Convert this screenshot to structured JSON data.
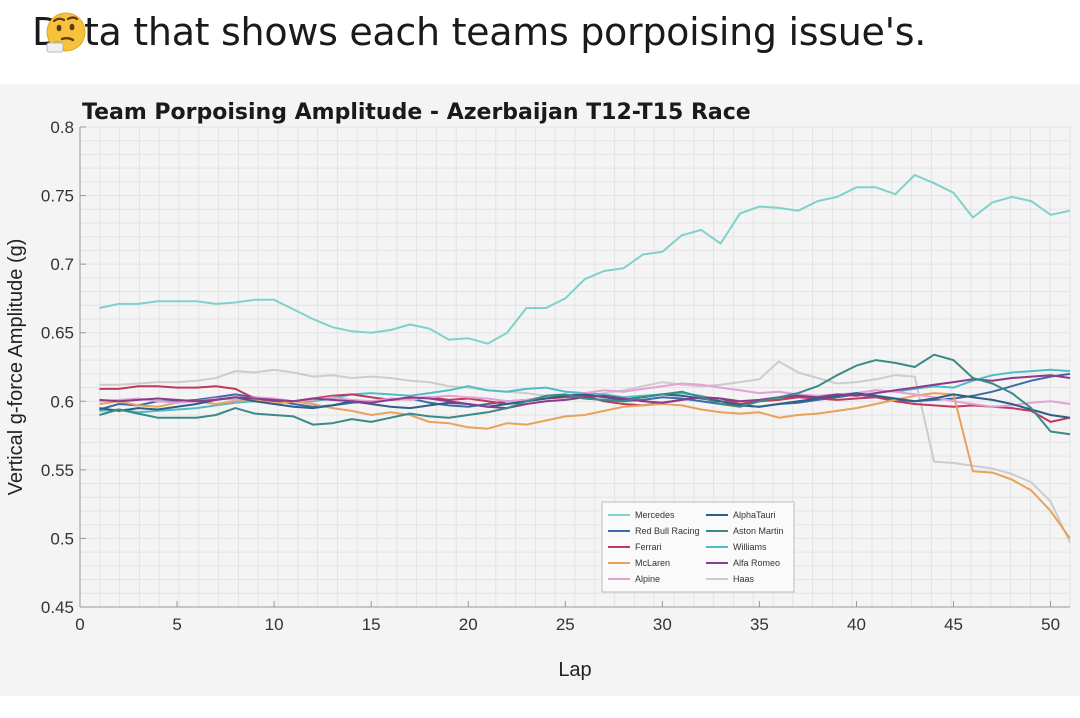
{
  "post": {
    "caption": "Data that shows each teams porpoising issue's.",
    "emoji": "thinking-face-emoji"
  },
  "chart_data": {
    "type": "line",
    "title": "Team Porpoising Amplitude - Azerbaijan T12-T15 Race",
    "xlabel": "Lap",
    "ylabel": "Vertical g-force Amplitude (g)",
    "xlim": [
      0,
      51
    ],
    "ylim": [
      0.45,
      0.8
    ],
    "xticks": [
      0,
      5,
      10,
      15,
      20,
      25,
      30,
      35,
      40,
      45,
      50
    ],
    "yticks": [
      0.45,
      0.5,
      0.55,
      0.6,
      0.65,
      0.7,
      0.75,
      0.8
    ],
    "ytick_labels": [
      "0.45",
      "0.5",
      "0.55",
      "0.6",
      "0.65",
      "0.7",
      "0.75",
      "0.8"
    ],
    "grid": true,
    "legend_position": "bottom-center",
    "x": [
      1,
      2,
      3,
      4,
      5,
      6,
      7,
      8,
      9,
      10,
      11,
      12,
      13,
      14,
      15,
      16,
      17,
      18,
      19,
      20,
      21,
      22,
      23,
      24,
      25,
      26,
      27,
      28,
      29,
      30,
      31,
      32,
      33,
      34,
      35,
      36,
      37,
      38,
      39,
      40,
      41,
      42,
      43,
      44,
      45,
      46,
      47,
      48,
      49,
      50,
      51
    ],
    "series": [
      {
        "name": "Mercedes",
        "color": "#7fd1cc",
        "values": [
          0.668,
          0.671,
          0.671,
          0.673,
          0.673,
          0.673,
          0.671,
          0.672,
          0.674,
          0.674,
          0.667,
          0.66,
          0.654,
          0.651,
          0.65,
          0.652,
          0.656,
          0.653,
          0.645,
          0.646,
          0.642,
          0.65,
          0.668,
          0.668,
          0.675,
          0.689,
          0.695,
          0.697,
          0.707,
          0.709,
          0.721,
          0.725,
          0.715,
          0.737,
          0.742,
          0.741,
          0.739,
          0.746,
          0.749,
          0.756,
          0.756,
          0.751,
          0.765,
          0.759,
          0.752,
          0.734,
          0.745,
          0.749,
          0.746,
          0.736,
          0.739
        ]
      },
      {
        "name": "Red Bull Racing",
        "color": "#3f6aa8",
        "values": [
          0.594,
          0.598,
          0.597,
          0.6,
          0.6,
          0.601,
          0.603,
          0.605,
          0.603,
          0.601,
          0.598,
          0.596,
          0.597,
          0.599,
          0.6,
          0.601,
          0.602,
          0.599,
          0.597,
          0.596,
          0.598,
          0.6,
          0.601,
          0.603,
          0.604,
          0.602,
          0.601,
          0.6,
          0.601,
          0.603,
          0.602,
          0.6,
          0.598,
          0.597,
          0.596,
          0.598,
          0.599,
          0.601,
          0.603,
          0.605,
          0.603,
          0.601,
          0.6,
          0.601,
          0.602,
          0.604,
          0.607,
          0.611,
          0.615,
          0.618,
          0.62
        ]
      },
      {
        "name": "Ferrari",
        "color": "#c0395e",
        "values": [
          0.609,
          0.609,
          0.611,
          0.611,
          0.61,
          0.61,
          0.611,
          0.609,
          0.602,
          0.6,
          0.6,
          0.602,
          0.604,
          0.605,
          0.603,
          0.601,
          0.602,
          0.603,
          0.601,
          0.602,
          0.6,
          0.598,
          0.6,
          0.602,
          0.603,
          0.604,
          0.6,
          0.598,
          0.597,
          0.599,
          0.601,
          0.603,
          0.602,
          0.598,
          0.6,
          0.601,
          0.603,
          0.602,
          0.601,
          0.602,
          0.603,
          0.6,
          0.598,
          0.597,
          0.596,
          0.597,
          0.596,
          0.595,
          0.593,
          0.585,
          0.588
        ]
      },
      {
        "name": "McLaren",
        "color": "#e8a25a",
        "values": [
          0.598,
          0.6,
          0.597,
          0.596,
          0.599,
          0.6,
          0.598,
          0.6,
          0.601,
          0.598,
          0.6,
          0.598,
          0.595,
          0.593,
          0.59,
          0.592,
          0.59,
          0.585,
          0.584,
          0.581,
          0.58,
          0.584,
          0.583,
          0.586,
          0.589,
          0.59,
          0.593,
          0.596,
          0.597,
          0.598,
          0.597,
          0.594,
          0.592,
          0.591,
          0.592,
          0.588,
          0.59,
          0.591,
          0.593,
          0.595,
          0.598,
          0.601,
          0.604,
          0.606,
          0.605,
          0.549,
          0.548,
          0.543,
          0.535,
          0.52,
          0.5
        ]
      },
      {
        "name": "Alpine",
        "color": "#e3a2d6",
        "values": [
          0.6,
          0.601,
          0.602,
          0.6,
          0.599,
          0.6,
          0.602,
          0.601,
          0.603,
          0.602,
          0.6,
          0.601,
          0.603,
          0.601,
          0.6,
          0.602,
          0.601,
          0.603,
          0.604,
          0.603,
          0.602,
          0.6,
          0.601,
          0.603,
          0.604,
          0.606,
          0.608,
          0.607,
          0.609,
          0.611,
          0.613,
          0.612,
          0.61,
          0.608,
          0.606,
          0.607,
          0.605,
          0.604,
          0.605,
          0.606,
          0.608,
          0.607,
          0.605,
          0.603,
          0.6,
          0.598,
          0.596,
          0.597,
          0.599,
          0.6,
          0.598
        ]
      },
      {
        "name": "AlphaTauri",
        "color": "#2e5f88",
        "values": [
          0.595,
          0.593,
          0.595,
          0.594,
          0.596,
          0.598,
          0.601,
          0.603,
          0.6,
          0.598,
          0.596,
          0.595,
          0.597,
          0.6,
          0.598,
          0.596,
          0.595,
          0.597,
          0.599,
          0.598,
          0.596,
          0.598,
          0.6,
          0.602,
          0.604,
          0.605,
          0.603,
          0.601,
          0.603,
          0.605,
          0.604,
          0.602,
          0.6,
          0.597,
          0.596,
          0.598,
          0.6,
          0.602,
          0.604,
          0.606,
          0.604,
          0.602,
          0.6,
          0.602,
          0.605,
          0.603,
          0.601,
          0.598,
          0.594,
          0.59,
          0.588
        ]
      },
      {
        "name": "Aston Martin",
        "color": "#3a8a86",
        "values": [
          0.59,
          0.594,
          0.591,
          0.588,
          0.588,
          0.588,
          0.59,
          0.595,
          0.591,
          0.59,
          0.589,
          0.583,
          0.584,
          0.587,
          0.585,
          0.588,
          0.591,
          0.589,
          0.588,
          0.59,
          0.592,
          0.595,
          0.6,
          0.604,
          0.605,
          0.602,
          0.601,
          0.6,
          0.603,
          0.605,
          0.607,
          0.603,
          0.598,
          0.596,
          0.6,
          0.603,
          0.606,
          0.611,
          0.619,
          0.626,
          0.63,
          0.628,
          0.625,
          0.634,
          0.63,
          0.617,
          0.613,
          0.606,
          0.595,
          0.578,
          0.576
        ]
      },
      {
        "name": "Williams",
        "color": "#4fbcc8",
        "values": [
          0.593,
          0.594,
          0.592,
          0.593,
          0.594,
          0.595,
          0.597,
          0.599,
          0.6,
          0.601,
          0.6,
          0.6,
          0.602,
          0.605,
          0.606,
          0.605,
          0.604,
          0.606,
          0.608,
          0.611,
          0.608,
          0.607,
          0.609,
          0.61,
          0.607,
          0.606,
          0.605,
          0.603,
          0.604,
          0.605,
          0.606,
          0.604,
          0.6,
          0.598,
          0.6,
          0.602,
          0.604,
          0.603,
          0.604,
          0.606,
          0.608,
          0.607,
          0.609,
          0.611,
          0.61,
          0.615,
          0.619,
          0.621,
          0.622,
          0.623,
          0.622
        ]
      },
      {
        "name": "Alfa Romeo",
        "color": "#8c3a8a",
        "values": [
          0.601,
          0.6,
          0.601,
          0.602,
          0.601,
          0.6,
          0.601,
          0.603,
          0.602,
          0.601,
          0.6,
          0.602,
          0.601,
          0.6,
          0.599,
          0.601,
          0.603,
          0.602,
          0.6,
          0.598,
          0.596,
          0.595,
          0.598,
          0.6,
          0.601,
          0.603,
          0.604,
          0.602,
          0.6,
          0.599,
          0.601,
          0.603,
          0.602,
          0.6,
          0.601,
          0.603,
          0.604,
          0.603,
          0.605,
          0.604,
          0.606,
          0.608,
          0.61,
          0.612,
          0.614,
          0.616,
          0.615,
          0.617,
          0.618,
          0.619,
          0.617
        ]
      },
      {
        "name": "Haas",
        "color": "#cccccc",
        "values": [
          0.612,
          0.612,
          0.613,
          0.614,
          0.614,
          0.615,
          0.617,
          0.622,
          0.621,
          0.623,
          0.621,
          0.618,
          0.619,
          0.617,
          0.618,
          0.617,
          0.615,
          0.614,
          0.611,
          0.61,
          0.608,
          0.607,
          0.606,
          0.604,
          0.605,
          0.603,
          0.606,
          0.608,
          0.611,
          0.614,
          0.612,
          0.611,
          0.612,
          0.614,
          0.616,
          0.629,
          0.621,
          0.617,
          0.613,
          0.614,
          0.616,
          0.619,
          0.618,
          0.556,
          0.555,
          0.553,
          0.551,
          0.547,
          0.541,
          0.527,
          0.497
        ]
      }
    ]
  }
}
